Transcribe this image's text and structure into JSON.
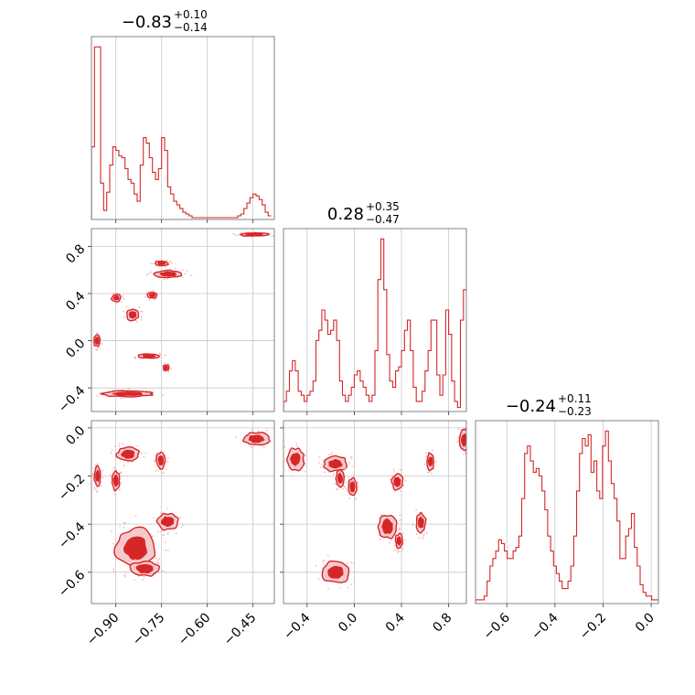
{
  "colors": {
    "accent": "#d62728",
    "fill_outer": "#f6c9cd",
    "fill_inner": "#d62728",
    "scatter": "#f4b9be"
  },
  "chart_data": {
    "type": "corner",
    "grid": true,
    "params": [
      {
        "title": {
          "median": "−0.83",
          "plus": "+0.10",
          "minus": "−0.14"
        },
        "range": [
          -0.98,
          -0.38
        ],
        "ticks": [
          -0.9,
          -0.75,
          -0.6,
          -0.45
        ],
        "tick_labels": [
          "−0.90",
          "−0.75",
          "−0.60",
          "−0.45"
        ],
        "histogram": {
          "start": -0.98,
          "bin_width": 0.01,
          "counts": [
            40,
            95,
            95,
            20,
            5,
            15,
            30,
            40,
            38,
            35,
            34,
            28,
            22,
            20,
            14,
            10,
            30,
            45,
            42,
            34,
            26,
            22,
            28,
            45,
            38,
            18,
            14,
            10,
            8,
            6,
            4,
            3,
            2,
            1,
            1,
            1,
            1,
            1,
            1,
            1,
            1,
            1,
            1,
            1,
            1,
            1,
            1,
            1,
            2,
            3,
            6,
            9,
            12,
            14,
            13,
            11,
            8,
            4,
            2
          ]
        }
      },
      {
        "title": {
          "median": "0.28",
          "plus": "+0.35",
          "minus": "−0.47"
        },
        "range": [
          -0.6,
          0.95
        ],
        "ticks": [
          -0.4,
          0.0,
          0.4,
          0.8
        ],
        "tick_labels": [
          "−0.4",
          "0.0",
          "0.4",
          "0.8"
        ],
        "histogram": {
          "start": -0.6,
          "bin_width": 0.025,
          "counts": [
            5,
            10,
            20,
            25,
            20,
            10,
            8,
            5,
            8,
            10,
            15,
            35,
            40,
            50,
            45,
            38,
            40,
            45,
            35,
            15,
            8,
            5,
            8,
            12,
            18,
            20,
            15,
            12,
            8,
            5,
            8,
            30,
            65,
            85,
            60,
            28,
            15,
            12,
            20,
            22,
            30,
            40,
            45,
            30,
            12,
            5,
            5,
            10,
            20,
            30,
            45,
            45,
            18,
            8,
            18,
            50,
            38,
            15,
            5,
            2,
            45,
            60
          ]
        }
      },
      {
        "title": {
          "median": "−0.24",
          "plus": "+0.11",
          "minus": "−0.23"
        },
        "range": [
          -0.73,
          0.03
        ],
        "ticks": [
          -0.6,
          -0.4,
          -0.2,
          0.0
        ],
        "tick_labels": [
          "−0.6",
          "−0.4",
          "−0.2",
          "0.0"
        ],
        "histogram": {
          "start": -0.73,
          "bin_width": 0.012,
          "counts": [
            1,
            1,
            1,
            2,
            6,
            10,
            12,
            14,
            17,
            16,
            14,
            12,
            12,
            14,
            15,
            18,
            28,
            40,
            42,
            38,
            35,
            36,
            34,
            30,
            25,
            18,
            14,
            10,
            8,
            6,
            4,
            4,
            6,
            10,
            18,
            30,
            40,
            44,
            42,
            45,
            35,
            38,
            30,
            28,
            42,
            46,
            38,
            32,
            28,
            22,
            12,
            12,
            18,
            20,
            24,
            15,
            10,
            5,
            3,
            2,
            2,
            1,
            1,
            1
          ]
        }
      }
    ],
    "pairs": [
      {
        "x": 0,
        "y": 1,
        "modes": [
          {
            "x": -0.962,
            "y": 0.0,
            "rx": 0.01,
            "ry": 0.05
          },
          {
            "x": -0.898,
            "y": 0.363,
            "rx": 0.015,
            "ry": 0.03
          },
          {
            "x": -0.845,
            "y": 0.22,
            "rx": 0.02,
            "ry": 0.05
          },
          {
            "x": -0.78,
            "y": 0.385,
            "rx": 0.015,
            "ry": 0.025
          },
          {
            "x": -0.75,
            "y": 0.655,
            "rx": 0.022,
            "ry": 0.018
          },
          {
            "x": -0.727,
            "y": 0.565,
            "rx": 0.045,
            "ry": 0.03
          },
          {
            "x": -0.445,
            "y": 0.9,
            "rx": 0.05,
            "ry": 0.013
          },
          {
            "x": -0.86,
            "y": -0.45,
            "rx": 0.08,
            "ry": 0.025
          },
          {
            "x": -0.79,
            "y": -0.13,
            "rx": 0.035,
            "ry": 0.018
          },
          {
            "x": -0.735,
            "y": -0.23,
            "rx": 0.01,
            "ry": 0.025
          }
        ]
      },
      {
        "x": 0,
        "y": 2,
        "modes": [
          {
            "x": -0.96,
            "y": -0.2,
            "rx": 0.01,
            "ry": 0.04
          },
          {
            "x": -0.9,
            "y": -0.22,
            "rx": 0.012,
            "ry": 0.04
          },
          {
            "x": -0.86,
            "y": -0.11,
            "rx": 0.035,
            "ry": 0.03
          },
          {
            "x": -0.752,
            "y": -0.135,
            "rx": 0.015,
            "ry": 0.035
          },
          {
            "x": -0.44,
            "y": -0.045,
            "rx": 0.045,
            "ry": 0.025
          },
          {
            "x": -0.73,
            "y": -0.39,
            "rx": 0.035,
            "ry": 0.035
          },
          {
            "x": -0.8,
            "y": -0.47,
            "rx": 0.015,
            "ry": 0.025
          },
          {
            "x": -0.835,
            "y": -0.5,
            "rx": 0.065,
            "ry": 0.08
          },
          {
            "x": -0.805,
            "y": -0.585,
            "rx": 0.05,
            "ry": 0.03
          }
        ]
      },
      {
        "x": 1,
        "y": 2,
        "modes": [
          {
            "x": -0.5,
            "y": -0.13,
            "rx": 0.07,
            "ry": 0.045
          },
          {
            "x": -0.16,
            "y": -0.15,
            "rx": 0.1,
            "ry": 0.03
          },
          {
            "x": -0.12,
            "y": -0.21,
            "rx": 0.035,
            "ry": 0.035
          },
          {
            "x": -0.015,
            "y": -0.245,
            "rx": 0.035,
            "ry": 0.035
          },
          {
            "x": 0.365,
            "y": -0.225,
            "rx": 0.045,
            "ry": 0.035
          },
          {
            "x": 0.645,
            "y": -0.14,
            "rx": 0.03,
            "ry": 0.035
          },
          {
            "x": 0.93,
            "y": -0.05,
            "rx": 0.035,
            "ry": 0.045
          },
          {
            "x": 0.28,
            "y": -0.41,
            "rx": 0.08,
            "ry": 0.05
          },
          {
            "x": 0.565,
            "y": -0.395,
            "rx": 0.04,
            "ry": 0.04
          },
          {
            "x": 0.38,
            "y": -0.47,
            "rx": 0.03,
            "ry": 0.03
          },
          {
            "x": -0.16,
            "y": -0.6,
            "rx": 0.12,
            "ry": 0.045
          }
        ]
      }
    ]
  }
}
